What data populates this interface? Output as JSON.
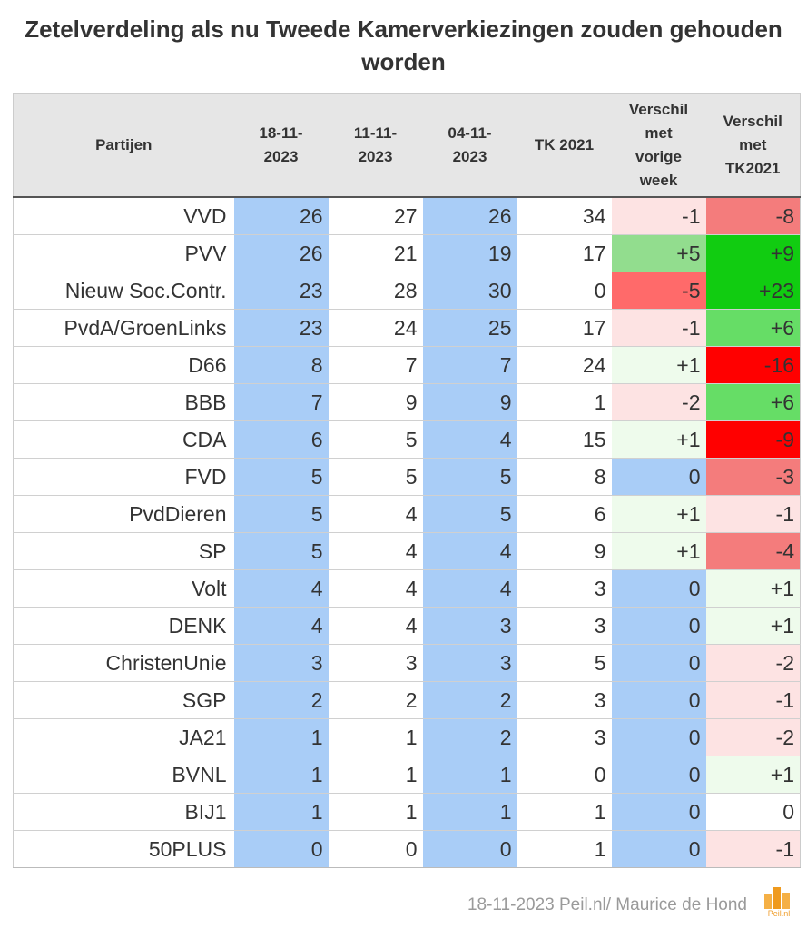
{
  "title": "Zetelverdeling als nu Tweede Kamerverkiezingen zouden gehouden worden",
  "footer": "18-11-2023 Peil.nl/ Maurice de Hond",
  "logo_text": "Peil.nl",
  "colors": {
    "blue": "#a9cdf7",
    "header_bg": "#e6e6e6",
    "light_red": "#fde3e3",
    "red_mid": "#f47c7c",
    "red": "#ff6a6a",
    "red_strong": "#ff0000",
    "light_green": "#eefbec",
    "green_mid": "#92dd8e",
    "green": "#66dd66",
    "green_strong": "#11cc11",
    "white": "#ffffff"
  },
  "chart_data": {
    "type": "table",
    "columns": [
      "Partijen",
      "18-11-2023",
      "11-11-2023",
      "04-11-2023",
      "TK 2021",
      "Verschil met vorige week",
      "Verschil met TK2021"
    ],
    "rows": [
      {
        "party": "VVD",
        "values": [
          "26",
          "27",
          "26",
          "34",
          "-1",
          "-8"
        ],
        "diff_week_color": "light_red",
        "diff_tk_color": "red_mid"
      },
      {
        "party": "PVV",
        "values": [
          "26",
          "21",
          "19",
          "17",
          "+5",
          "+9"
        ],
        "diff_week_color": "green_mid",
        "diff_tk_color": "green_strong"
      },
      {
        "party": "Nieuw Soc.Contr.",
        "values": [
          "23",
          "28",
          "30",
          "0",
          "-5",
          "+23"
        ],
        "diff_week_color": "red",
        "diff_tk_color": "green_strong"
      },
      {
        "party": "PvdA/GroenLinks",
        "values": [
          "23",
          "24",
          "25",
          "17",
          "-1",
          "+6"
        ],
        "diff_week_color": "light_red",
        "diff_tk_color": "green"
      },
      {
        "party": "D66",
        "values": [
          "8",
          "7",
          "7",
          "24",
          "+1",
          "-16"
        ],
        "diff_week_color": "light_green",
        "diff_tk_color": "red_strong"
      },
      {
        "party": "BBB",
        "values": [
          "7",
          "9",
          "9",
          "1",
          "-2",
          "+6"
        ],
        "diff_week_color": "light_red",
        "diff_tk_color": "green"
      },
      {
        "party": "CDA",
        "values": [
          "6",
          "5",
          "4",
          "15",
          "+1",
          "-9"
        ],
        "diff_week_color": "light_green",
        "diff_tk_color": "red_strong"
      },
      {
        "party": "FVD",
        "values": [
          "5",
          "5",
          "5",
          "8",
          "0",
          "-3"
        ],
        "diff_week_color": "blue",
        "diff_tk_color": "red_mid"
      },
      {
        "party": "PvdDieren",
        "values": [
          "5",
          "4",
          "5",
          "6",
          "+1",
          "-1"
        ],
        "diff_week_color": "light_green",
        "diff_tk_color": "light_red"
      },
      {
        "party": "SP",
        "values": [
          "5",
          "4",
          "4",
          "9",
          "+1",
          "-4"
        ],
        "diff_week_color": "light_green",
        "diff_tk_color": "red_mid"
      },
      {
        "party": "Volt",
        "values": [
          "4",
          "4",
          "4",
          "3",
          "0",
          "+1"
        ],
        "diff_week_color": "blue",
        "diff_tk_color": "light_green"
      },
      {
        "party": "DENK",
        "values": [
          "4",
          "4",
          "3",
          "3",
          "0",
          "+1"
        ],
        "diff_week_color": "blue",
        "diff_tk_color": "light_green"
      },
      {
        "party": "ChristenUnie",
        "values": [
          "3",
          "3",
          "3",
          "5",
          "0",
          "-2"
        ],
        "diff_week_color": "blue",
        "diff_tk_color": "light_red"
      },
      {
        "party": "SGP",
        "values": [
          "2",
          "2",
          "2",
          "3",
          "0",
          "-1"
        ],
        "diff_week_color": "blue",
        "diff_tk_color": "light_red"
      },
      {
        "party": "JA21",
        "values": [
          "1",
          "1",
          "2",
          "3",
          "0",
          "-2"
        ],
        "diff_week_color": "blue",
        "diff_tk_color": "light_red"
      },
      {
        "party": "BVNL",
        "values": [
          "1",
          "1",
          "1",
          "0",
          "0",
          "+1"
        ],
        "diff_week_color": "blue",
        "diff_tk_color": "light_green"
      },
      {
        "party": "BIJ1",
        "values": [
          "1",
          "1",
          "1",
          "1",
          "0",
          "0"
        ],
        "diff_week_color": "blue",
        "diff_tk_color": "white"
      },
      {
        "party": "50PLUS",
        "values": [
          "0",
          "0",
          "0",
          "1",
          "0",
          "-1"
        ],
        "diff_week_color": "blue",
        "diff_tk_color": "light_red"
      }
    ]
  }
}
